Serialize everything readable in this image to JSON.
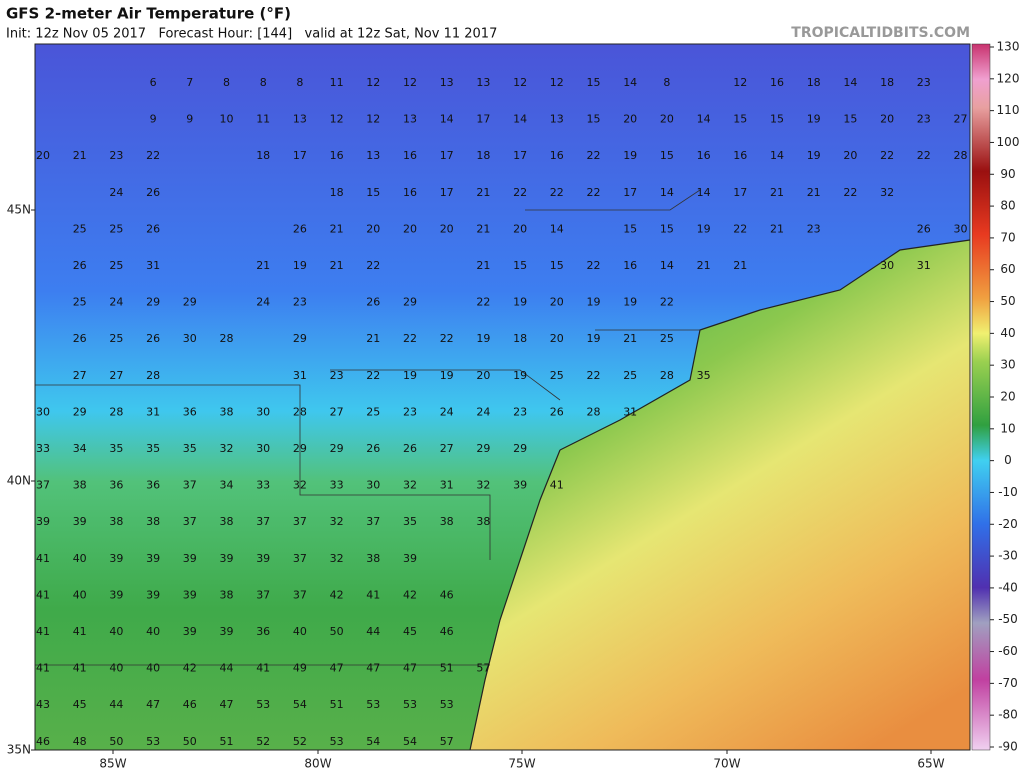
{
  "header": {
    "title": "GFS 2-meter Air Temperature (°F)",
    "subtitle": "Init: 12z Nov 05 2017   Forecast Hour: [144]   valid at 12z Sat, Nov 11 2017",
    "credit": "TROPICALTIDBITS.COM"
  },
  "axes": {
    "lat_labels": [
      "45N",
      "40N",
      "35N"
    ],
    "lon_labels": [
      "85W",
      "80W",
      "75W",
      "70W",
      "65W"
    ]
  },
  "colorbar": {
    "ticks": [
      130,
      120,
      110,
      100,
      90,
      80,
      70,
      60,
      50,
      40,
      30,
      20,
      10,
      0,
      -10,
      -20,
      -30,
      -40,
      -50,
      -60,
      -70,
      -80,
      -90
    ]
  },
  "stations": {
    "rows": [
      [
        null,
        null,
        null,
        6,
        7,
        8,
        8,
        8,
        11,
        12,
        12,
        13,
        13,
        12,
        12,
        15,
        14,
        8,
        null,
        12,
        16,
        18,
        14,
        18,
        23,
        null
      ],
      [
        null,
        null,
        null,
        9,
        9,
        10,
        11,
        13,
        12,
        12,
        13,
        14,
        17,
        14,
        13,
        15,
        20,
        20,
        14,
        15,
        15,
        19,
        15,
        20,
        23,
        27
      ],
      [
        20,
        21,
        23,
        22,
        null,
        null,
        18,
        17,
        16,
        13,
        16,
        17,
        18,
        17,
        16,
        22,
        19,
        15,
        16,
        16,
        14,
        19,
        20,
        22,
        22,
        28
      ],
      [
        null,
        null,
        24,
        26,
        null,
        null,
        null,
        null,
        18,
        15,
        16,
        17,
        21,
        22,
        22,
        22,
        17,
        14,
        14,
        17,
        21,
        21,
        22,
        32,
        null,
        null
      ],
      [
        null,
        25,
        25,
        26,
        null,
        null,
        null,
        26,
        21,
        20,
        20,
        20,
        21,
        20,
        14,
        null,
        15,
        15,
        19,
        22,
        21,
        23,
        null,
        null,
        26,
        30
      ],
      [
        null,
        26,
        25,
        31,
        null,
        null,
        21,
        19,
        21,
        22,
        null,
        null,
        21,
        15,
        15,
        22,
        16,
        14,
        21,
        21,
        null,
        null,
        null,
        30,
        31,
        null
      ],
      [
        null,
        25,
        24,
        29,
        29,
        null,
        24,
        23,
        null,
        26,
        29,
        null,
        22,
        19,
        20,
        19,
        19,
        22,
        null,
        null,
        null,
        null,
        null,
        null,
        null,
        null
      ],
      [
        null,
        26,
        25,
        26,
        30,
        28,
        null,
        29,
        null,
        21,
        22,
        22,
        19,
        18,
        20,
        19,
        21,
        25,
        null,
        null,
        null,
        null,
        null,
        null,
        null,
        null
      ],
      [
        null,
        27,
        27,
        28,
        null,
        null,
        null,
        31,
        23,
        22,
        19,
        19,
        20,
        19,
        25,
        22,
        25,
        28,
        35,
        null,
        null,
        null,
        null,
        null,
        null,
        null
      ],
      [
        30,
        29,
        28,
        31,
        36,
        38,
        30,
        28,
        27,
        25,
        23,
        24,
        24,
        23,
        26,
        28,
        31,
        null,
        null,
        null,
        null,
        null,
        null,
        null,
        null,
        null
      ],
      [
        33,
        34,
        35,
        35,
        35,
        32,
        30,
        29,
        29,
        26,
        26,
        27,
        29,
        29,
        null,
        null,
        null,
        null,
        null,
        null,
        null,
        null,
        null,
        null,
        null,
        null
      ],
      [
        37,
        38,
        36,
        36,
        37,
        34,
        33,
        32,
        33,
        30,
        32,
        31,
        32,
        39,
        41,
        null,
        null,
        null,
        null,
        null,
        null,
        null,
        null,
        null,
        null,
        null
      ],
      [
        39,
        39,
        38,
        38,
        37,
        38,
        37,
        37,
        32,
        37,
        35,
        38,
        38,
        null,
        null,
        null,
        null,
        null,
        null,
        null,
        null,
        null,
        null,
        null,
        null,
        null
      ],
      [
        41,
        40,
        39,
        39,
        39,
        39,
        39,
        37,
        32,
        38,
        39,
        null,
        null,
        null,
        null,
        null,
        null,
        null,
        null,
        null,
        null,
        null,
        null,
        null,
        null,
        null
      ],
      [
        41,
        40,
        39,
        39,
        39,
        38,
        37,
        37,
        42,
        41,
        42,
        46,
        null,
        null,
        null,
        null,
        null,
        null,
        null,
        null,
        null,
        null,
        null,
        null,
        null,
        null
      ],
      [
        41,
        41,
        40,
        40,
        39,
        39,
        36,
        40,
        50,
        44,
        45,
        46,
        null,
        null,
        null,
        null,
        null,
        null,
        null,
        null,
        null,
        null,
        null,
        null,
        null,
        null
      ],
      [
        41,
        41,
        40,
        40,
        42,
        44,
        41,
        49,
        47,
        47,
        47,
        51,
        57,
        null,
        null,
        null,
        null,
        null,
        null,
        null,
        null,
        null,
        null,
        null,
        null,
        null
      ],
      [
        43,
        45,
        44,
        47,
        46,
        47,
        53,
        54,
        51,
        53,
        53,
        53,
        null,
        null,
        null,
        null,
        null,
        null,
        null,
        null,
        null,
        null,
        null,
        null,
        null,
        null
      ],
      [
        46,
        48,
        50,
        53,
        50,
        51,
        52,
        52,
        53,
        54,
        54,
        57,
        null,
        null,
        null,
        null,
        null,
        null,
        null,
        null,
        null,
        null,
        null,
        null,
        null,
        null
      ]
    ]
  }
}
